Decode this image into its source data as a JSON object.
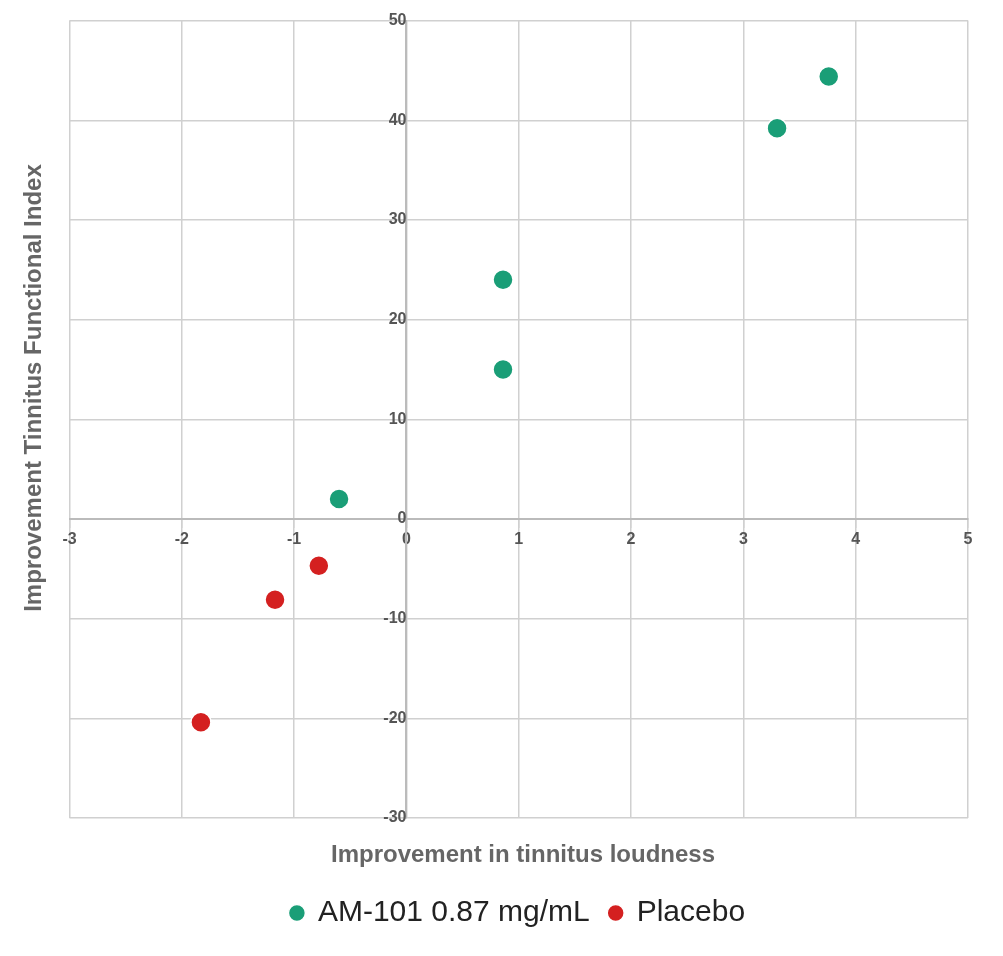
{
  "chart_data": {
    "type": "scatter",
    "xlabel": "Improvement in tinnitus loudness",
    "ylabel": "Improvement Tinnitus Functional Index",
    "series": [
      {
        "name": "AM-101 0.87 mg/mL",
        "color": "#1a9e77",
        "x": [
          3.76,
          3.3,
          0.86,
          0.86,
          -0.6
        ],
        "values": [
          44.4,
          39.2,
          24,
          15,
          2
        ]
      },
      {
        "name": "Placebo",
        "color": "#d42020",
        "x": [
          -0.78,
          -1.17,
          -1.83
        ],
        "values": [
          -4.7,
          -8.1,
          -20.4
        ]
      }
    ],
    "xlim": [
      -3,
      5
    ],
    "xticks": [
      -3,
      -2,
      -1,
      0,
      1,
      2,
      3,
      4,
      5
    ],
    "ylim": [
      -30,
      50
    ],
    "yticks": [
      -30,
      -20,
      -10,
      0,
      10,
      20,
      30,
      40,
      50
    ],
    "grid": true,
    "legend": "bottom",
    "marker": "circle"
  }
}
